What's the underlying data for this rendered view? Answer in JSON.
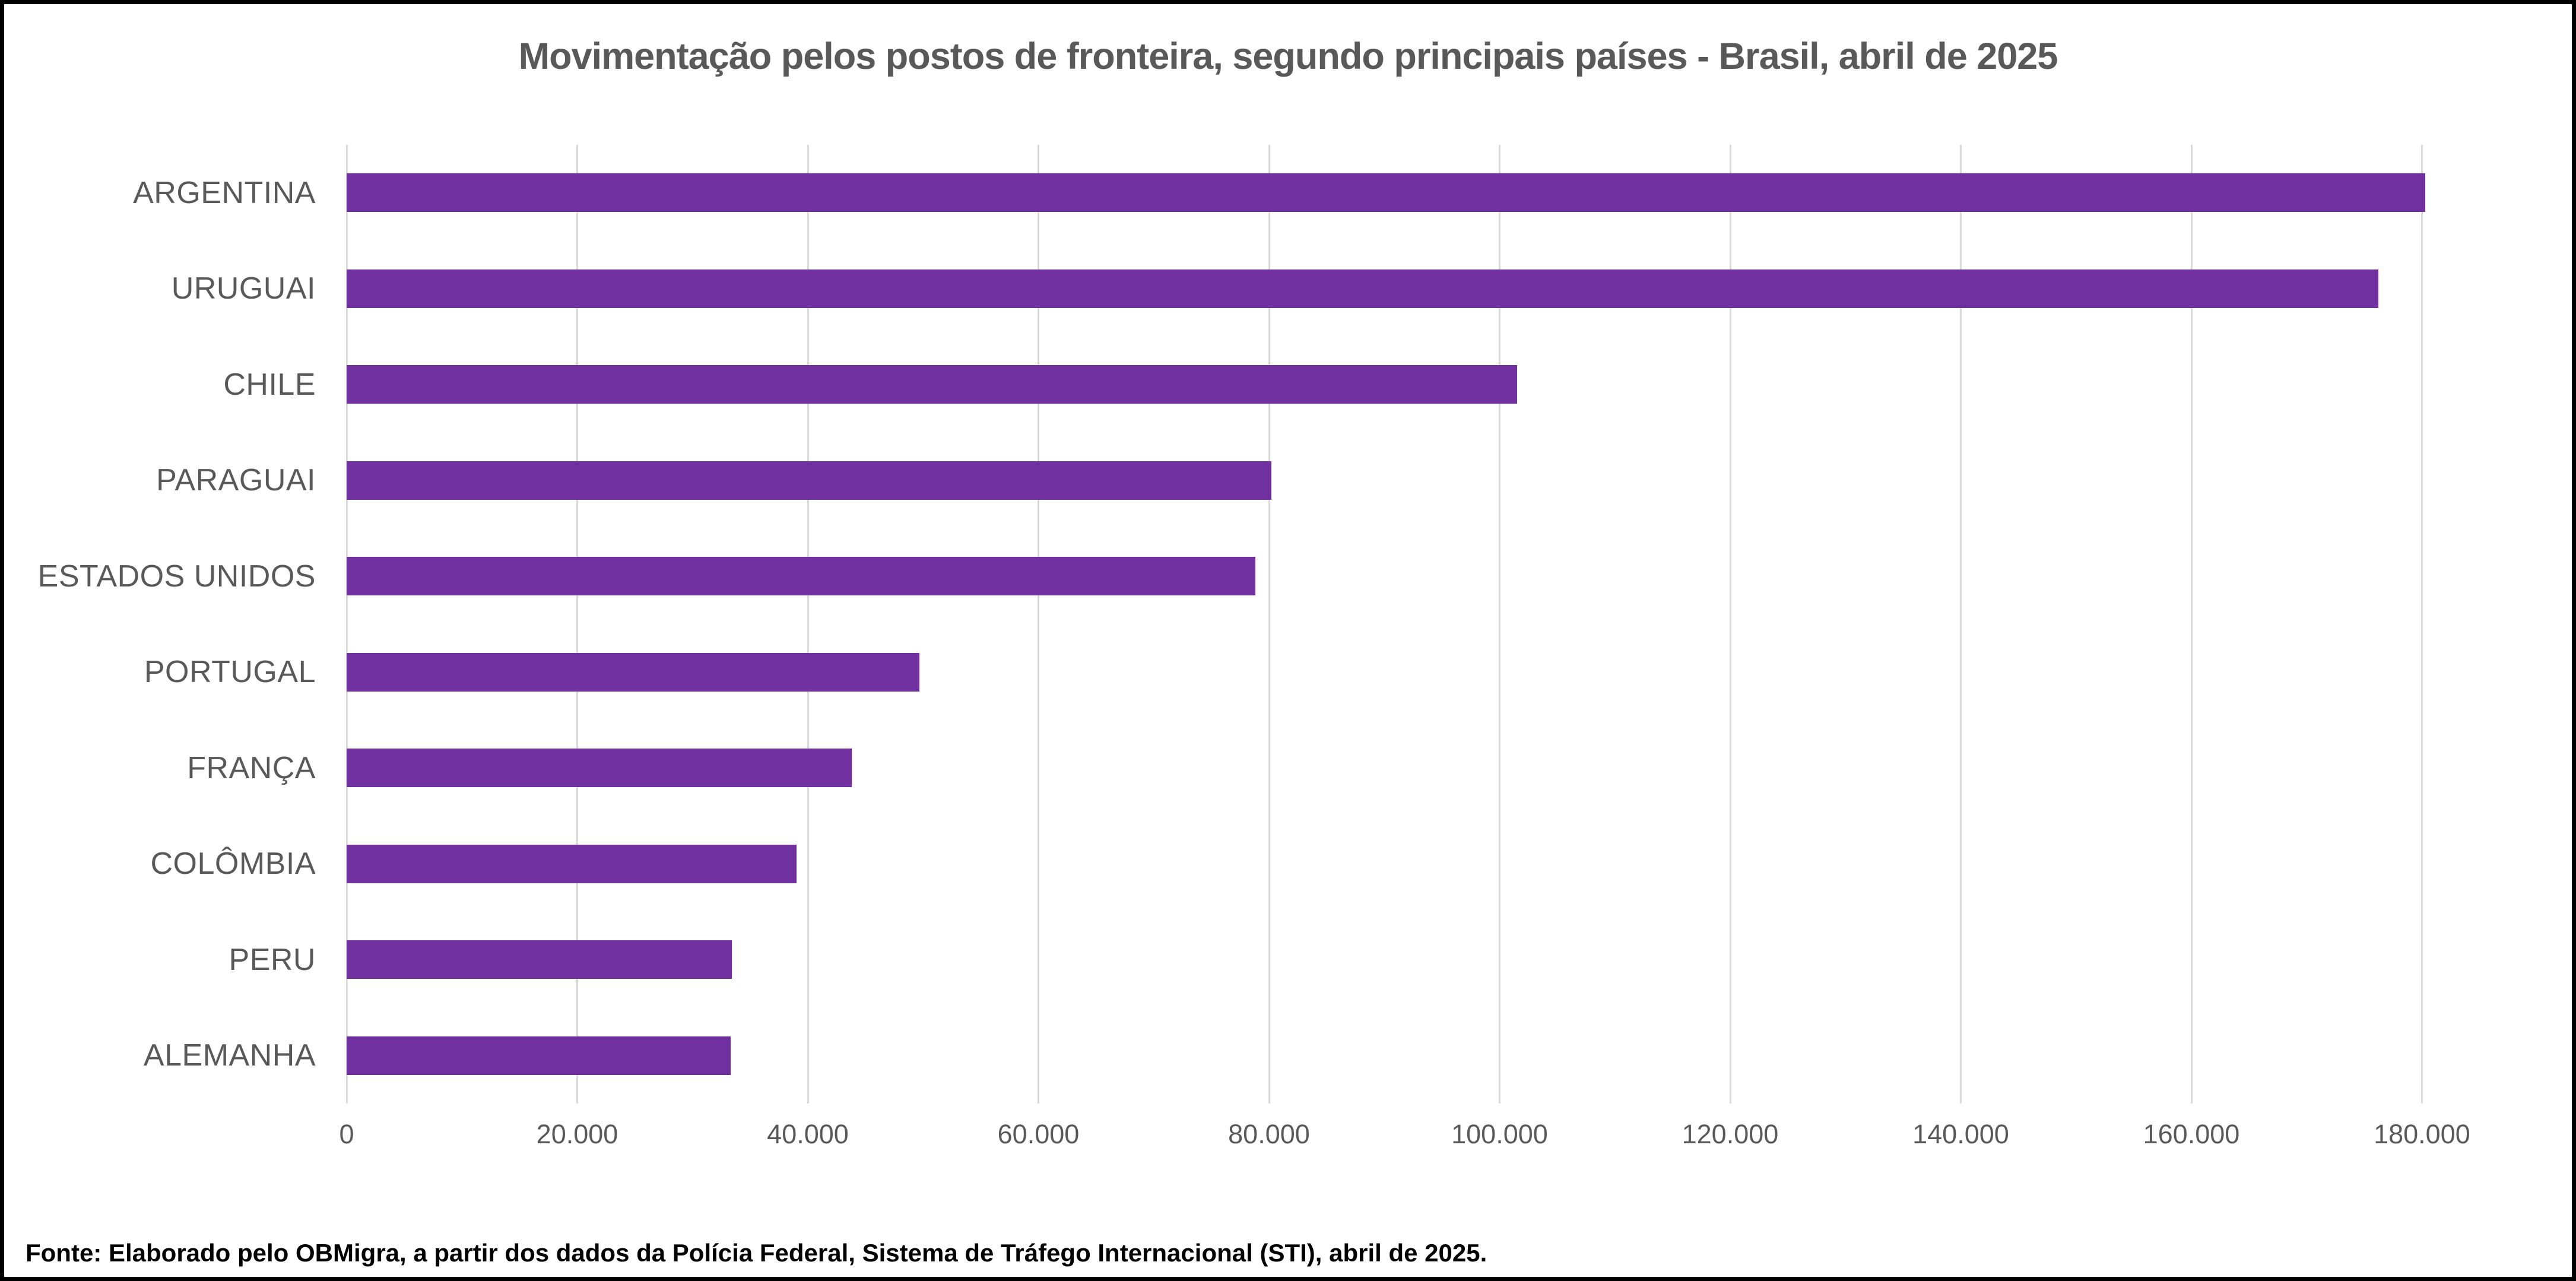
{
  "title": "Movimentação pelos postos de fronteira, segundo principais países - Brasil, abril de 2025",
  "footer": "Fonte: Elaborado pelo OBMigra, a partir dos dados da Polícia Federal, Sistema de Tráfego Internacional (STI), abril  de 2025.",
  "colors": {
    "bar": "#7030A0",
    "gridline": "#D9D9D9",
    "axis_text": "#595959",
    "title_text": "#595959",
    "footer_text": "#000000",
    "border": "#000000",
    "background": "#FFFFFF"
  },
  "chart_data": {
    "type": "bar",
    "orientation": "horizontal",
    "title": "Movimentação pelos postos de fronteira, segundo principais países - Brasil, abril de 2025",
    "xlabel": "",
    "ylabel": "",
    "categories": [
      "ARGENTINA",
      "URUGUAI",
      "CHILE",
      "PARAGUAI",
      "ESTADOS UNIDOS",
      "PORTUGAL",
      "FRANÇA",
      "COLÔMBIA",
      "PERU",
      "ALEMANHA"
    ],
    "values": [
      180300,
      176200,
      101500,
      80200,
      78800,
      49700,
      43800,
      39000,
      33400,
      33300
    ],
    "xlim": [
      0,
      186000
    ],
    "xticks": [
      0,
      20000,
      40000,
      60000,
      80000,
      100000,
      120000,
      140000,
      160000,
      180000
    ],
    "xtick_labels": [
      "0",
      "20.000",
      "40.000",
      "60.000",
      "80.000",
      "100.000",
      "120.000",
      "140.000",
      "160.000",
      "180.000"
    ],
    "grid": "vertical-only",
    "legend": "none",
    "bar_color": "#7030A0"
  }
}
